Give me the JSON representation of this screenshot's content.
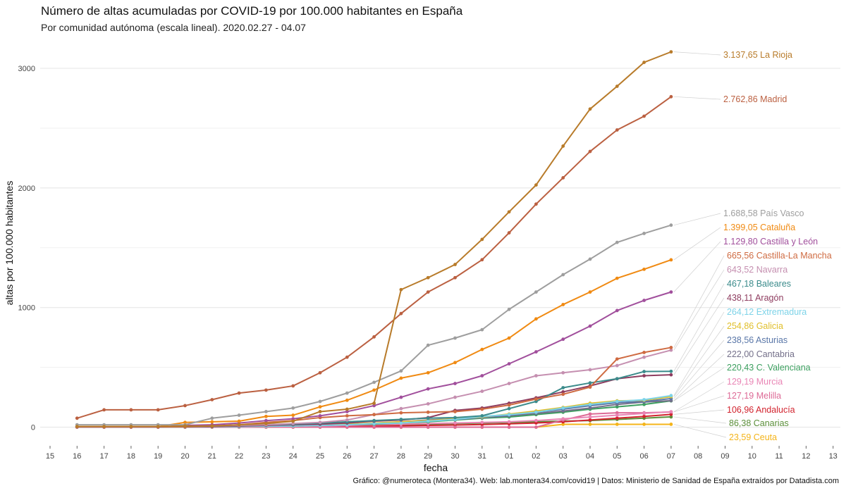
{
  "header": {
    "title": "Número de altas acumuladas por COVID-19 por 100.000 habitantes en España",
    "subtitle": "Por comunidad autónoma (escala lineal). 2020.02.27 - 04.07"
  },
  "caption": "Gráfico: @numeroteca (Montera34). Web: lab.montera34.com/covid19 | Datos: Ministerio de Sanidad de España extraídos por Datadista.com",
  "chart_data": {
    "type": "line",
    "xlabel": "fecha",
    "ylabel": "altas por 100.000 habitantes",
    "ylim": [
      -150,
      3230
    ],
    "y_ticks": [
      0,
      1000,
      2000,
      3000
    ],
    "x_ticks": [
      "15",
      "16",
      "17",
      "18",
      "19",
      "20",
      "21",
      "22",
      "23",
      "24",
      "25",
      "26",
      "27",
      "28",
      "29",
      "30",
      "31",
      "01",
      "02",
      "03",
      "04",
      "05",
      "06",
      "07",
      "08",
      "09",
      "10",
      "11",
      "12",
      "13"
    ],
    "x_dates": [
      "03-16",
      "03-17",
      "03-18",
      "03-19",
      "03-20",
      "03-21",
      "03-22",
      "03-23",
      "03-24",
      "03-25",
      "03-26",
      "03-27",
      "03-28",
      "03-29",
      "03-30",
      "03-31",
      "04-01",
      "04-02",
      "04-03",
      "04-04",
      "04-05",
      "04-06",
      "04-07"
    ],
    "grid": true,
    "legend": "direct labels at right end of lines",
    "series": [
      {
        "name": "La Rioja",
        "label": "3.137,65 La Rioja",
        "color": "#b87b2a",
        "values": [
          5,
          5,
          5,
          5,
          10,
          10,
          20,
          30,
          50,
          130,
          150,
          200,
          1150,
          1250,
          1360,
          1570,
          1800,
          2025,
          2350,
          2660,
          2850,
          3050,
          3138
        ]
      },
      {
        "name": "Madrid",
        "label": "2.762,86 Madrid",
        "color": "#bb6041",
        "values": [
          75,
          145,
          145,
          145,
          180,
          230,
          285,
          310,
          345,
          455,
          585,
          755,
          950,
          1130,
          1250,
          1400,
          1625,
          1865,
          2085,
          2305,
          2485,
          2600,
          2763
        ]
      },
      {
        "name": "País Vasco",
        "label": "1.688,58 País Vasco",
        "color": "#9e9e9e",
        "values": [
          20,
          20,
          20,
          20,
          20,
          75,
          100,
          130,
          160,
          215,
          285,
          375,
          470,
          685,
          745,
          815,
          985,
          1130,
          1275,
          1405,
          1545,
          1620,
          1689
        ]
      },
      {
        "name": "Cataluña",
        "label": "1.399,05 Cataluña",
        "color": "#f08a12",
        "values": [
          5,
          5,
          5,
          5,
          40,
          45,
          50,
          90,
          100,
          170,
          225,
          310,
          410,
          455,
          540,
          650,
          745,
          905,
          1025,
          1130,
          1245,
          1320,
          1399
        ]
      },
      {
        "name": "Castilla y León",
        "label": "1.129,80 Castilla y León",
        "color": "#a14f9c",
        "values": [
          2,
          2,
          2,
          2,
          15,
          20,
          35,
          55,
          70,
          95,
          130,
          180,
          250,
          320,
          365,
          430,
          530,
          630,
          735,
          845,
          975,
          1060,
          1130
        ]
      },
      {
        "name": "Castilla-La Mancha",
        "label": "665,56 Castilla-La Mancha",
        "color": "#cf6b42",
        "values": [
          2,
          2,
          2,
          2,
          5,
          10,
          20,
          40,
          55,
          80,
          95,
          105,
          120,
          125,
          130,
          150,
          185,
          235,
          275,
          335,
          570,
          625,
          666
        ]
      },
      {
        "name": "Navarra",
        "label": "643,52 Navarra",
        "color": "#c58fb0",
        "values": [
          2,
          2,
          2,
          2,
          5,
          10,
          15,
          20,
          30,
          40,
          60,
          105,
          155,
          195,
          250,
          300,
          365,
          430,
          455,
          480,
          515,
          585,
          644
        ]
      },
      {
        "name": "Baleares",
        "label": "467,18 Baleares",
        "color": "#3b8b8b",
        "values": [
          2,
          2,
          2,
          2,
          5,
          10,
          15,
          20,
          25,
          35,
          45,
          55,
          65,
          75,
          80,
          95,
          155,
          215,
          330,
          370,
          405,
          465,
          467
        ]
      },
      {
        "name": "Aragón",
        "label": "438,11 Aragón",
        "color": "#8e3c5f",
        "values": [
          2,
          2,
          2,
          2,
          3,
          5,
          10,
          15,
          20,
          25,
          35,
          50,
          60,
          80,
          140,
          160,
          200,
          245,
          295,
          345,
          405,
          430,
          438
        ]
      },
      {
        "name": "Extremadura",
        "label": "264,12 Extremadura",
        "color": "#7dd3e8",
        "values": [
          2,
          2,
          2,
          2,
          2,
          3,
          5,
          8,
          10,
          15,
          20,
          30,
          35,
          50,
          65,
          90,
          105,
          125,
          160,
          190,
          215,
          230,
          264
        ]
      },
      {
        "name": "Galicia",
        "label": "254,86 Galicia",
        "color": "#e0bf2a",
        "values": [
          2,
          2,
          2,
          2,
          2,
          3,
          5,
          8,
          10,
          15,
          25,
          35,
          45,
          55,
          70,
          85,
          110,
          135,
          165,
          200,
          220,
          225,
          255
        ]
      },
      {
        "name": "Asturias",
        "label": "238,56 Asturias",
        "color": "#5a77a8",
        "values": [
          2,
          2,
          2,
          2,
          2,
          3,
          5,
          8,
          10,
          15,
          20,
          30,
          40,
          55,
          65,
          80,
          100,
          125,
          150,
          180,
          205,
          215,
          239
        ]
      },
      {
        "name": "Cantabria",
        "label": "222,00 Cantabria",
        "color": "#74708a",
        "values": [
          2,
          2,
          2,
          2,
          2,
          3,
          5,
          8,
          10,
          15,
          20,
          30,
          45,
          60,
          70,
          80,
          95,
          115,
          135,
          160,
          190,
          210,
          222
        ]
      },
      {
        "name": "C. Valenciana",
        "label": "220,43 C. Valenciana",
        "color": "#3c9f5f",
        "values": [
          2,
          2,
          2,
          2,
          2,
          3,
          5,
          8,
          10,
          15,
          20,
          25,
          35,
          45,
          60,
          75,
          85,
          105,
          125,
          150,
          170,
          190,
          220
        ]
      },
      {
        "name": "Murcia",
        "label": "129,19 Murcia",
        "color": "#e985b5",
        "values": [
          2,
          2,
          2,
          2,
          2,
          2,
          3,
          5,
          8,
          10,
          15,
          20,
          25,
          30,
          35,
          40,
          45,
          55,
          70,
          85,
          100,
          115,
          129
        ]
      },
      {
        "name": "Melilla",
        "label": "127,19 Melilla",
        "color": "#dd6a96",
        "values": [
          0,
          0,
          0,
          0,
          0,
          0,
          0,
          0,
          0,
          0,
          0,
          0,
          0,
          0,
          0,
          0,
          0,
          0,
          60,
          110,
          120,
          120,
          127
        ]
      },
      {
        "name": "Andalucía",
        "label": "106,96 Andalucía",
        "color": "#d2232e",
        "values": [
          1,
          1,
          1,
          1,
          1,
          2,
          3,
          4,
          5,
          6,
          8,
          10,
          12,
          15,
          18,
          22,
          28,
          35,
          45,
          60,
          75,
          90,
          107
        ]
      },
      {
        "name": "Canarias",
        "label": "86,38 Canarias",
        "color": "#5b8f3a",
        "values": [
          1,
          1,
          1,
          1,
          1,
          2,
          3,
          4,
          5,
          8,
          10,
          15,
          20,
          25,
          30,
          35,
          40,
          45,
          50,
          55,
          65,
          75,
          86
        ]
      },
      {
        "name": "Ceuta",
        "label": "23,59 Ceuta",
        "color": "#f4b41a",
        "values": [
          0,
          0,
          0,
          0,
          0,
          0,
          0,
          0,
          0,
          0,
          0,
          0,
          0,
          0,
          0,
          0,
          0,
          0,
          24,
          24,
          24,
          24,
          24
        ]
      }
    ]
  }
}
